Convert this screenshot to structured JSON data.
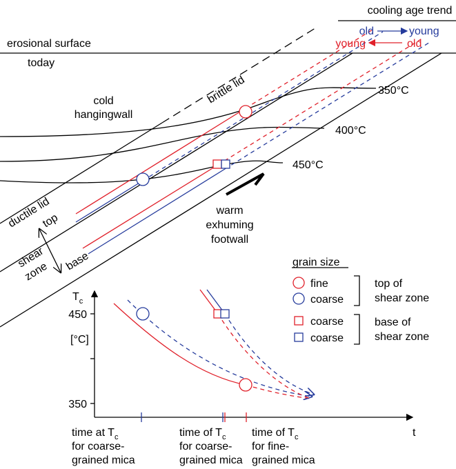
{
  "trend": {
    "title": "cooling age trend",
    "blue_from": "old",
    "blue_to": "young",
    "red_from": "young",
    "red_to": "old"
  },
  "labels": {
    "surface": "erosional surface",
    "today": "today",
    "brittle_lid": "brittle lid",
    "hangingwall": [
      "cold",
      "hangingwall"
    ],
    "ductile_lid": "ductile lid",
    "top": "top",
    "shear_zone": [
      "shear",
      "zone"
    ],
    "base": "base",
    "footwall": [
      "warm",
      "exhuming",
      "footwall"
    ]
  },
  "isotherms": [
    "350°C",
    "400°C",
    "450°C"
  ],
  "legend": {
    "title": "grain size",
    "items": [
      "fine",
      "coarse",
      "coarse",
      "coarse"
    ],
    "groups": [
      [
        "top of",
        "shear zone"
      ],
      [
        "base of",
        "shear zone"
      ]
    ]
  },
  "graph": {
    "y_label": {
      "main": "T",
      "sub": "c"
    },
    "y_unit": "[°C]",
    "y_ticks": [
      "450",
      "350"
    ],
    "x_label": "t",
    "time_labels": [
      {
        "main": "time at T",
        "sub": "c",
        "lines": [
          "for coarse-",
          "grained mica"
        ]
      },
      {
        "main": "time of T",
        "sub": "c",
        "lines": [
          "for coarse-",
          "grained mica"
        ]
      },
      {
        "main": "time of T",
        "sub": "c",
        "lines": [
          "for fine-",
          "grained mica"
        ]
      }
    ]
  }
}
